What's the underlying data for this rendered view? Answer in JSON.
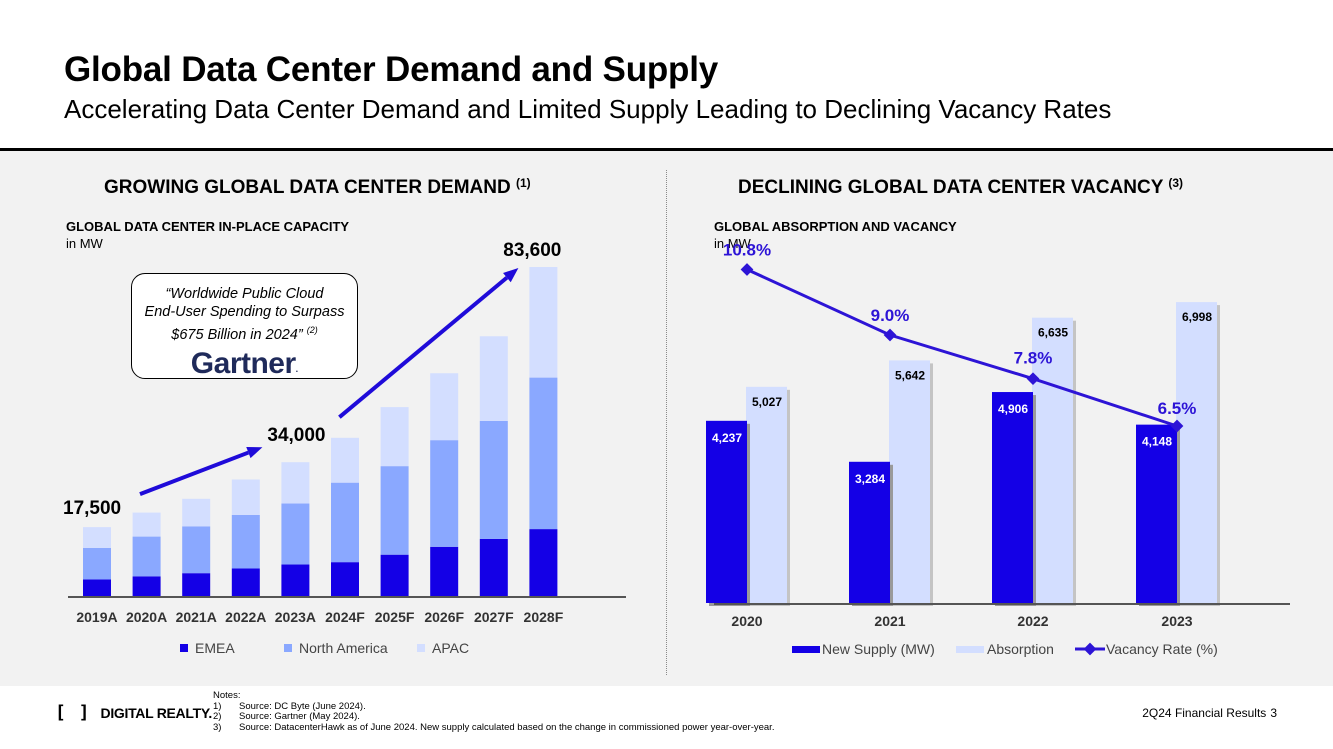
{
  "header": {
    "title": "Global Data Center Demand and Supply",
    "subtitle": "Accelerating Data Center Demand and Limited Supply Leading to Declining Vacancy Rates"
  },
  "left": {
    "section_title": "GROWING GLOBAL DATA CENTER DEMAND",
    "section_note": "(1)",
    "chart_label": "GLOBAL DATA CENTER IN-PLACE CAPACITY",
    "unit": "in MW",
    "callout": {
      "line1": "“Worldwide Public Cloud",
      "line2": "End-User Spending to Surpass",
      "line3": "$675 Billion in 2024”",
      "note": "(2)",
      "logo": "Gartner",
      "logo_mark": "."
    }
  },
  "right": {
    "section_title": "DECLINING GLOBAL DATA CENTER VACANCY",
    "section_note": "(3)",
    "chart_label": "GLOBAL ABSORPTION AND VACANCY",
    "unit": "in MW"
  },
  "colors": {
    "emea": "#1400e6",
    "north_america": "#8aa8ff",
    "apac": "#d3deff",
    "new_supply": "#1400e6",
    "absorption": "#d3deff",
    "vacancy_line": "#2d14d6",
    "arrow": "#1f0bd9"
  },
  "chart_data": [
    {
      "type": "bar",
      "stacked": true,
      "title": "GLOBAL DATA CENTER IN-PLACE CAPACITY",
      "ylabel": "in MW",
      "ylim": [
        0,
        83600
      ],
      "categories": [
        "2019A",
        "2020A",
        "2021A",
        "2022A",
        "2023A",
        "2024F",
        "2025F",
        "2026F",
        "2027F",
        "2028F"
      ],
      "series": [
        {
          "name": "EMEA",
          "values": [
            4200,
            5000,
            5800,
            7000,
            8000,
            8600,
            10500,
            12500,
            14500,
            17000
          ]
        },
        {
          "name": "North America",
          "values": [
            8000,
            10100,
            11900,
            13600,
            15500,
            20200,
            22500,
            27100,
            30000,
            38500
          ]
        },
        {
          "name": "APAC",
          "values": [
            5300,
            6100,
            7000,
            9000,
            10500,
            11400,
            15000,
            17000,
            21500,
            28100
          ]
        }
      ],
      "annotations": [
        {
          "label": "17,500",
          "category": "2019A"
        },
        {
          "label": "34,000",
          "category": "2023A"
        },
        {
          "label": "83,600",
          "category": "2028F"
        }
      ],
      "legend": "bottom"
    },
    {
      "type": "bar",
      "title": "GLOBAL ABSORPTION AND VACANCY",
      "ylabel": "in MW",
      "ylim": [
        0,
        8000
      ],
      "categories": [
        "2020",
        "2021",
        "2022",
        "2023"
      ],
      "series": [
        {
          "name": "New Supply (MW)",
          "values": [
            4237,
            3284,
            4906,
            4148
          ],
          "labels": [
            "4,237",
            "3,284",
            "4,906",
            "4,148"
          ]
        },
        {
          "name": "Absorption",
          "values": [
            5027,
            5642,
            6635,
            6998
          ],
          "labels": [
            "5,027",
            "5,642",
            "6,635",
            "6,998"
          ]
        }
      ],
      "line_series": {
        "name": "Vacancy Rate (%)",
        "values": [
          10.8,
          9.0,
          7.8,
          6.5
        ],
        "labels": [
          "10.8%",
          "9.0%",
          "7.8%",
          "6.5%"
        ]
      },
      "legend": "bottom"
    }
  ],
  "footer": {
    "logo_text": "DIGITAL REALTY.",
    "notes_title": "Notes:",
    "notes": [
      {
        "n": "1)",
        "text": "Source: DC Byte (June 2024)."
      },
      {
        "n": "2)",
        "text": "Source: Gartner (May 2024)."
      },
      {
        "n": "3)",
        "text": "Source: DatacenterHawk as of June 2024. New supply calculated based on the change in commissioned power year-over-year."
      }
    ],
    "right_text": "2Q24 Financial Results",
    "page": "3"
  }
}
